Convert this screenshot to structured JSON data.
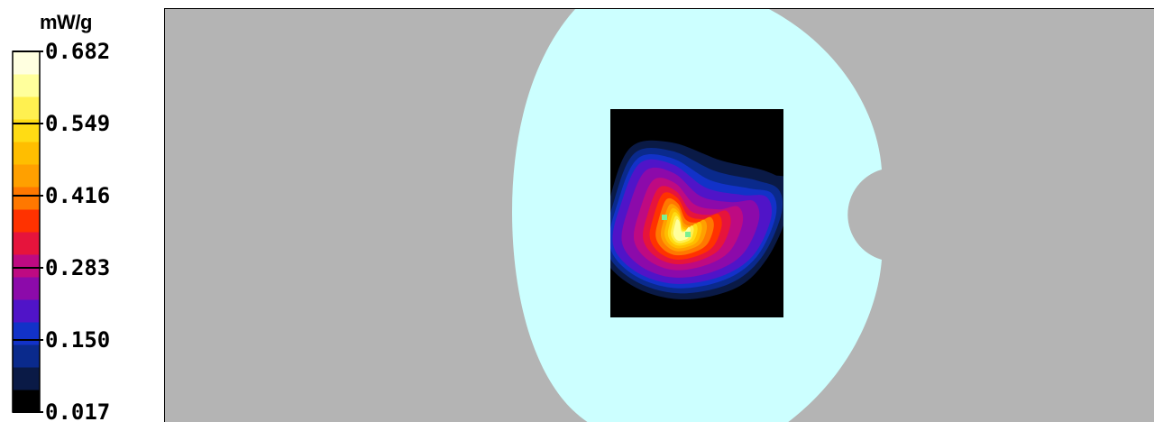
{
  "chart_data": {
    "type": "heatmap",
    "title": "",
    "unit": "mW/g",
    "colorbar": {
      "min": 0.017,
      "max": 0.682,
      "tick_labels": [
        "0.682",
        "0.549",
        "0.416",
        "0.283",
        "0.150",
        "0.017"
      ],
      "tick_values": [
        0.682,
        0.549,
        0.416,
        0.283,
        0.15,
        0.017
      ],
      "colors": [
        "#000000",
        "#0a1a46",
        "#0a2a8c",
        "#1232c8",
        "#5014c8",
        "#8c0aaa",
        "#be0a82",
        "#e6143c",
        "#ff3200",
        "#ff7800",
        "#ffa000",
        "#ffbe00",
        "#ffdc14",
        "#fff050",
        "#ffff9c",
        "#ffffe0"
      ]
    },
    "peak_locations": 2,
    "background_colors": {
      "outside": "#b4b4b4",
      "phantom": "#ccffff",
      "scan_area": "#000000",
      "peak_marker": "#7cf090"
    }
  }
}
